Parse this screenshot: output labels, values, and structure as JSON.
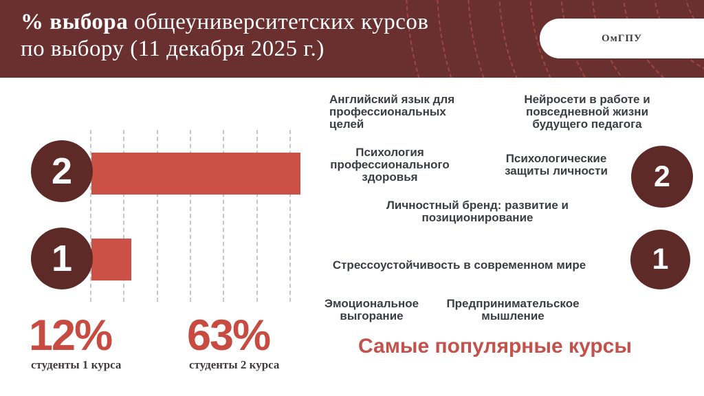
{
  "header": {
    "title_bold": "% выбора",
    "title_rest": " общеуниверситетских курсов",
    "title_line2": "по выбору (11 декабря 2025 г.)",
    "badge": "ОмГПУ"
  },
  "chart_data": {
    "type": "bar",
    "orientation": "horizontal",
    "title": "% выбора общеуниверситетских курсов по выбору (11 декабря 2025 г.)",
    "categories": [
      "2",
      "1"
    ],
    "values": [
      63,
      12
    ],
    "unit": "%",
    "xlim": [
      0,
      63
    ],
    "gridlines": true,
    "gridline_interval": 10,
    "legend": "none",
    "bar_color": "#cb5046",
    "category_circle_color": "#5e2a28"
  },
  "stats": [
    {
      "value": "12%",
      "label": "студенты 1 курса"
    },
    {
      "value": "63%",
      "label": "студенты 2 курса"
    }
  ],
  "courses": [
    {
      "text": "Английский язык для профессиональных целей"
    },
    {
      "text": "Нейросети в работе и повседневной жизни будущего педагога"
    },
    {
      "text": "Психология профессионального здоровья"
    },
    {
      "text": "Психологические защиты личности"
    },
    {
      "text": "Личностный бренд: развитие и позиционирование"
    },
    {
      "text": "Стрессоустойчивость в современном мире"
    },
    {
      "text": "Эмоциональное выгорание"
    },
    {
      "text": "Предпринимательское мышление"
    }
  ],
  "popular_title": "Самые популярные курсы",
  "colors": {
    "header_bg": "#6a3030",
    "circle_bg": "#5e2a28",
    "bar_red": "#cb5046",
    "accent_red": "#c74b41",
    "popular_red": "#c4524c",
    "course_text": "#3a3d42"
  }
}
